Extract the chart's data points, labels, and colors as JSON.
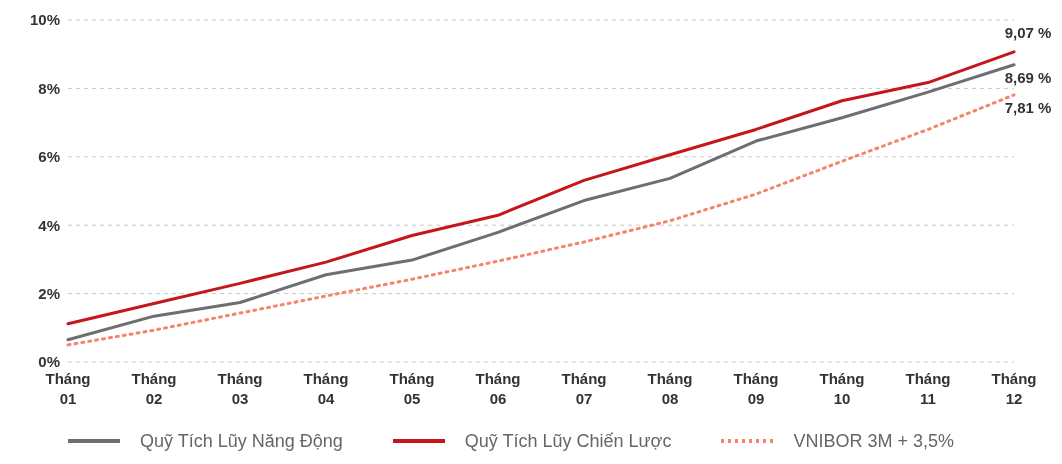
{
  "chart_data": {
    "type": "line",
    "categories": [
      "Tháng 01",
      "Tháng 02",
      "Tháng 03",
      "Tháng 04",
      "Tháng 05",
      "Tháng 06",
      "Tháng 07",
      "Tháng 08",
      "Tháng 09",
      "Tháng 10",
      "Tháng 11",
      "Tháng 12"
    ],
    "series": [
      {
        "name": "Quỹ Tích Lũy  Năng Động",
        "color": "#6d6e71",
        "line_style": "solid",
        "values": [
          0.65,
          1.34,
          1.74,
          2.55,
          2.98,
          3.79,
          4.72,
          5.37,
          6.46,
          7.14,
          7.89,
          8.69
        ],
        "value_labels": [
          null,
          null,
          null,
          null,
          null,
          null,
          null,
          null,
          null,
          null,
          null,
          "8,69 %"
        ]
      },
      {
        "name": "Quỹ Tích Lũy Chiến Lược",
        "color": "#c4161c",
        "line_style": "solid",
        "values": [
          1.12,
          1.71,
          2.3,
          2.92,
          3.7,
          4.29,
          5.31,
          6.06,
          6.8,
          7.64,
          8.17,
          9.07
        ],
        "value_labels": [
          null,
          null,
          null,
          null,
          null,
          null,
          null,
          null,
          null,
          null,
          null,
          "9,07 %"
        ]
      },
      {
        "name": "VNIBOR 3M + 3,5%",
        "color": "#f4846b",
        "line_style": "dotted",
        "values": [
          0.5,
          0.93,
          1.43,
          1.93,
          2.42,
          2.95,
          3.51,
          4.13,
          4.91,
          5.87,
          6.8,
          7.81
        ],
        "value_labels": [
          null,
          null,
          null,
          null,
          null,
          null,
          null,
          null,
          null,
          null,
          null,
          "7,81 %"
        ]
      }
    ],
    "ylim": [
      0,
      10
    ],
    "yticks": [
      {
        "value": 0,
        "label": "0%"
      },
      {
        "value": 2,
        "label": "2%"
      },
      {
        "value": 4,
        "label": "4%"
      },
      {
        "value": 6,
        "label": "6%"
      },
      {
        "value": 8,
        "label": "8%"
      },
      {
        "value": 10,
        "label": "10%"
      }
    ],
    "grid": "y",
    "legend": "bottom",
    "marker": "none"
  }
}
